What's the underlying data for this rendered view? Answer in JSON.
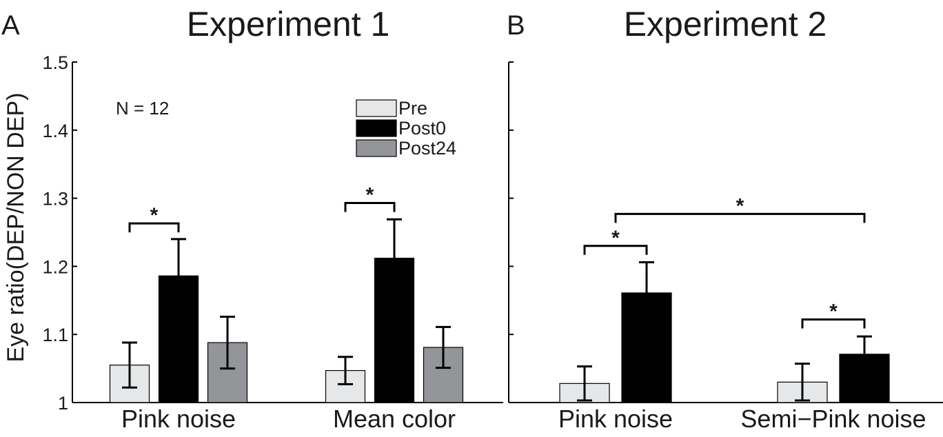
{
  "ylabel": "Eye ratio(DEP/NON DEP)",
  "colors": {
    "Pre": "#e6e7e8",
    "Post0": "#000000",
    "Post24": "#939598"
  },
  "chart_data": [
    {
      "type": "bar",
      "panel_letter": "A",
      "title": "Experiment 1",
      "annotation": "N = 12",
      "categories": [
        "Pink noise",
        "Mean color"
      ],
      "series": [
        {
          "name": "Pre",
          "values": [
            1.055,
            1.047
          ],
          "errors": [
            0.033,
            0.02
          ]
        },
        {
          "name": "Post0",
          "values": [
            1.186,
            1.212
          ],
          "errors": [
            0.054,
            0.057
          ]
        },
        {
          "name": "Post24",
          "values": [
            1.088,
            1.081
          ],
          "errors": [
            0.038,
            0.03
          ]
        }
      ],
      "ylim": [
        1.0,
        1.5
      ],
      "yticks": [
        "1",
        "1.1",
        "1.2",
        "1.3",
        "1.4",
        "1.5"
      ],
      "legend": {
        "placement": "top-right",
        "entries": [
          "Pre",
          "Post0",
          "Post24"
        ]
      },
      "significance": [
        {
          "label": "*",
          "from": [
            0,
            0
          ],
          "to": [
            0,
            1
          ],
          "level": 1.263
        },
        {
          "label": "*",
          "from": [
            1,
            0
          ],
          "to": [
            1,
            1
          ],
          "level": 1.293
        }
      ]
    },
    {
      "type": "bar",
      "panel_letter": "B",
      "title": "Experiment 2",
      "categories": [
        "Pink noise",
        "Semi−Pink noise"
      ],
      "series": [
        {
          "name": "Pre",
          "values": [
            1.028,
            1.03
          ],
          "errors": [
            0.025,
            0.027
          ]
        },
        {
          "name": "Post0",
          "values": [
            1.161,
            1.071
          ],
          "errors": [
            0.045,
            0.026
          ]
        }
      ],
      "ylim": [
        1.0,
        1.5
      ],
      "significance": [
        {
          "label": "*",
          "from": [
            0,
            0
          ],
          "to": [
            0,
            1
          ],
          "level": 1.23
        },
        {
          "label": "*",
          "from": [
            1,
            0
          ],
          "to": [
            1,
            1
          ],
          "level": 1.122
        },
        {
          "label": "*",
          "from": [
            0,
            0.5
          ],
          "to": [
            1,
            1
          ],
          "level": 1.277
        }
      ]
    }
  ]
}
